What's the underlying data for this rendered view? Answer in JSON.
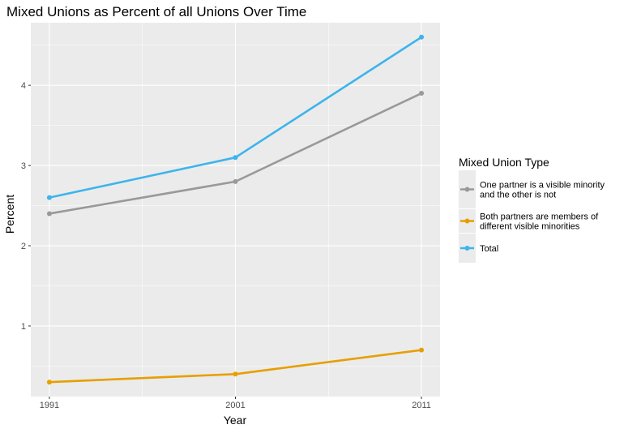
{
  "chart_data": {
    "type": "line",
    "title": "Mixed Unions as Percent of all Unions Over Time",
    "xlabel": "Year",
    "ylabel": "Percent",
    "x": [
      1991,
      2001,
      2011
    ],
    "x_tick_labels": [
      "1991",
      "2001",
      "2011"
    ],
    "y_ticks": [
      1,
      2,
      3,
      4
    ],
    "y_tick_labels": [
      "1",
      "2",
      "3",
      "4"
    ],
    "ylim": [
      0.12,
      4.78
    ],
    "xlim": [
      1990.0,
      2012.0
    ],
    "grid": true,
    "legend_position": "right",
    "legend_title": "Mixed Union Type",
    "series": [
      {
        "name": "One partner is a visible minority and the other is not",
        "name_lines": [
          "One partner is a visible minority",
          "and the other is not"
        ],
        "color": "#999999",
        "values": [
          2.4,
          2.8,
          3.9
        ]
      },
      {
        "name": "Both partners are members of different visible minorities",
        "name_lines": [
          "Both partners are members of",
          "different visible minorities"
        ],
        "color": "#E69F00",
        "values": [
          0.3,
          0.4,
          0.7
        ]
      },
      {
        "name": "Total",
        "name_lines": [
          "Total"
        ],
        "color": "#3DB4EC",
        "values": [
          2.6,
          3.1,
          4.6
        ]
      }
    ]
  },
  "colors": {
    "panel_background": "#EBEBEB",
    "grid_major": "#FFFFFF",
    "tick_text": "#4D4D4D"
  }
}
